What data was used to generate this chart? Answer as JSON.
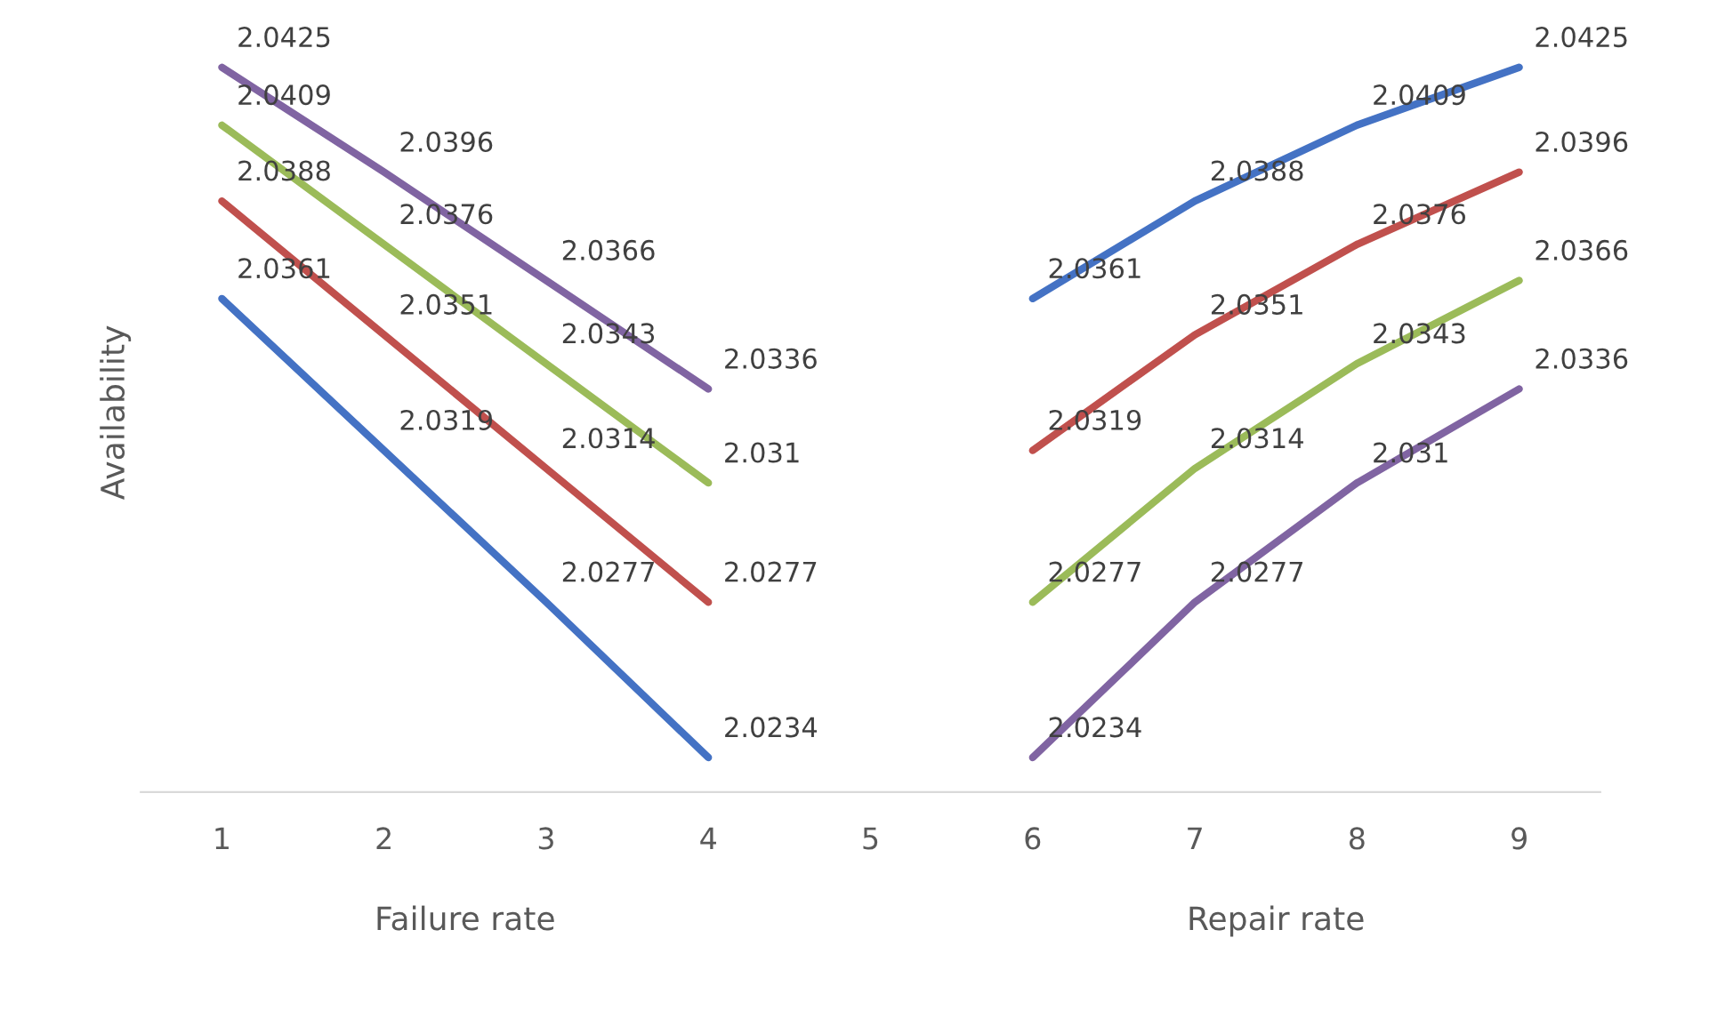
{
  "chart_data": {
    "type": "line",
    "ylabel": "Availability",
    "xlabel": [
      "Failure rate",
      "Repair rate"
    ],
    "categories": [
      "1",
      "2",
      "3",
      "4",
      "5",
      "6",
      "7",
      "8",
      "9"
    ],
    "tick_labels": "x",
    "grid": false,
    "legend": false,
    "marker": "none",
    "line_style": "solid",
    "data_labels": true,
    "series": [
      {
        "color": "#4472c4",
        "values": [
          2.0361,
          2.0319,
          2.0277,
          2.0234,
          null,
          2.0361,
          2.0388,
          2.0409,
          2.0425
        ]
      },
      {
        "color": "#c0504d",
        "values": [
          2.0388,
          2.0351,
          2.0314,
          2.0277,
          null,
          2.0319,
          2.0351,
          2.0376,
          2.0396
        ]
      },
      {
        "color": "#9bbb59",
        "values": [
          2.0409,
          2.0376,
          2.0343,
          2.031,
          null,
          2.0277,
          2.0314,
          2.0343,
          2.0366
        ]
      },
      {
        "color": "#8064a2",
        "values": [
          2.0425,
          2.0396,
          2.0366,
          2.0336,
          null,
          2.0234,
          2.0277,
          2.031,
          2.0336
        ]
      }
    ]
  }
}
